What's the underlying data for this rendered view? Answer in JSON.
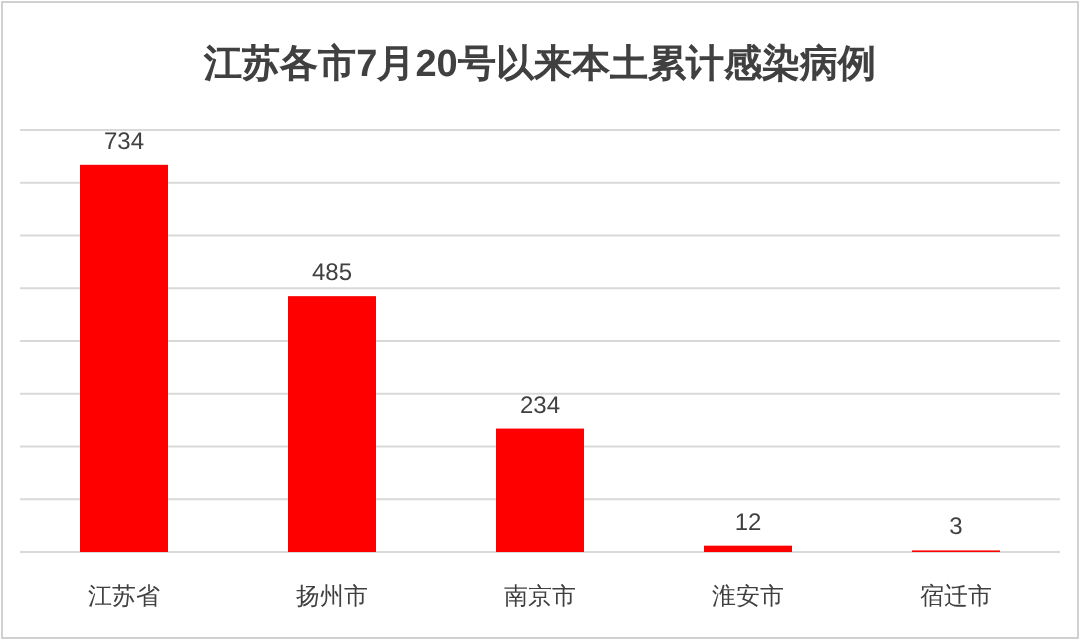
{
  "chart_data": {
    "type": "bar",
    "title": "江苏各市7月20号以来本土累计感染病例",
    "categories": [
      "江苏省",
      "扬州市",
      "南京市",
      "淮安市",
      "宿迁市"
    ],
    "values": [
      734,
      485,
      234,
      12,
      3
    ],
    "color": "#ff0000",
    "data_labels": true,
    "grid": "y",
    "ylim": [
      0,
      800
    ],
    "yticks": [
      {
        "value": 0,
        "label": null
      },
      {
        "value": 100,
        "label": null
      },
      {
        "value": 200,
        "label": null
      },
      {
        "value": 300,
        "label": null
      },
      {
        "value": 400,
        "label": null
      },
      {
        "value": 500,
        "label": null
      },
      {
        "value": 600,
        "label": null
      },
      {
        "value": 700,
        "label": null
      },
      {
        "value": 800,
        "label": null
      }
    ]
  }
}
